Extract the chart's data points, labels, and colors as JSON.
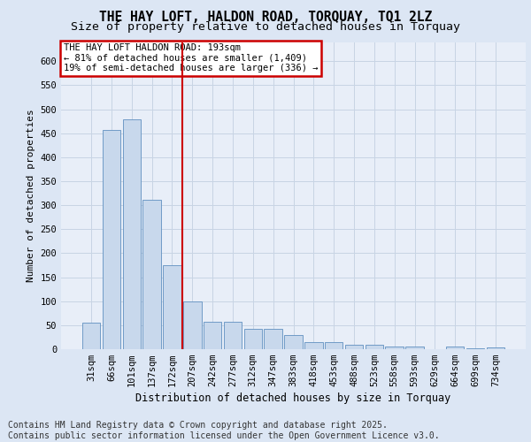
{
  "title_line1": "THE HAY LOFT, HALDON ROAD, TORQUAY, TQ1 2LZ",
  "title_line2": "Size of property relative to detached houses in Torquay",
  "xlabel": "Distribution of detached houses by size in Torquay",
  "ylabel": "Number of detached properties",
  "bar_color": "#c8d8ec",
  "bar_edge_color": "#6090c0",
  "grid_color": "#c8d4e4",
  "background_color": "#dce6f4",
  "plot_bg_color": "#e8eef8",
  "vline_color": "#cc0000",
  "vline_x_idx": 4,
  "annotation_text": "THE HAY LOFT HALDON ROAD: 193sqm\n← 81% of detached houses are smaller (1,409)\n19% of semi-detached houses are larger (336) →",
  "annotation_box_edgecolor": "#cc0000",
  "categories": [
    "31sqm",
    "66sqm",
    "101sqm",
    "137sqm",
    "172sqm",
    "207sqm",
    "242sqm",
    "277sqm",
    "312sqm",
    "347sqm",
    "383sqm",
    "418sqm",
    "453sqm",
    "488sqm",
    "523sqm",
    "558sqm",
    "593sqm",
    "629sqm",
    "664sqm",
    "699sqm",
    "734sqm"
  ],
  "values": [
    55,
    457,
    478,
    312,
    175,
    100,
    58,
    58,
    42,
    43,
    30,
    14,
    14,
    9,
    9,
    6,
    6,
    0,
    6,
    2,
    4
  ],
  "ylim_max": 640,
  "yticks": [
    0,
    50,
    100,
    150,
    200,
    250,
    300,
    350,
    400,
    450,
    500,
    550,
    600
  ],
  "footnote": "Contains HM Land Registry data © Crown copyright and database right 2025.\nContains public sector information licensed under the Open Government Licence v3.0.",
  "footnote_fontsize": 7.0,
  "title_fontsize1": 10.5,
  "title_fontsize2": 9.5,
  "ylabel_fontsize": 8,
  "xlabel_fontsize": 8.5,
  "tick_fontsize": 7.5,
  "annot_fontsize": 7.5
}
